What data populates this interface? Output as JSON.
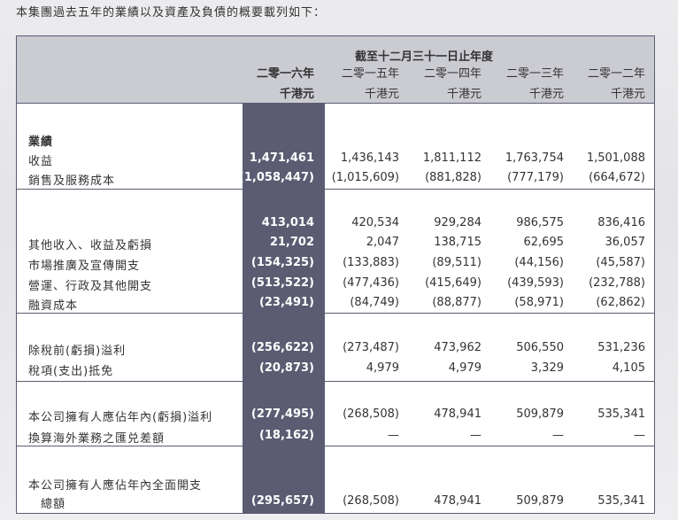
{
  "intro": "本集團過去五年的業績以及資產及負債的概要載列如下：",
  "header": {
    "title": "截至十二月三十一日止年度",
    "years": [
      "二零一六年",
      "二零一五年",
      "二零一四年",
      "二零一三年",
      "二零一二年"
    ],
    "unit": "千港元"
  },
  "rows": [
    {
      "label": "業績",
      "values": []
    },
    {
      "label": "收益",
      "values": [
        "1,471,461",
        "1,436,143",
        "1,811,112",
        "1,763,754",
        "1,501,088"
      ]
    },
    {
      "label": "銷售及服務成本",
      "values": [
        "(1,058,447)",
        "(1,015,609)",
        "(881,828)",
        "(777,179)",
        "(664,672)"
      ]
    },
    {
      "label": "",
      "values": [
        "413,014",
        "420,534",
        "929,284",
        "986,575",
        "836,416"
      ]
    },
    {
      "label": "其他收入、收益及虧損",
      "values": [
        "21,702",
        "2,047",
        "138,715",
        "62,695",
        "36,057"
      ]
    },
    {
      "label": "市場推廣及宣傳開支",
      "values": [
        "(154,325)",
        "(133,883)",
        "(89,511)",
        "(44,156)",
        "(45,587)"
      ]
    },
    {
      "label": "營運、行政及其他開支",
      "values": [
        "(513,522)",
        "(477,436)",
        "(415,649)",
        "(439,593)",
        "(232,788)"
      ]
    },
    {
      "label": "融資成本",
      "values": [
        "(23,491)",
        "(84,749)",
        "(88,877)",
        "(58,971)",
        "(62,862)"
      ]
    },
    {
      "label": "除稅前(虧損)溢利",
      "values": [
        "(256,622)",
        "(273,487)",
        "473,962",
        "506,550",
        "531,236"
      ]
    },
    {
      "label": "稅項(支出)抵免",
      "values": [
        "(20,873)",
        "4,979",
        "4,979",
        "3,329",
        "4,105"
      ]
    },
    {
      "label": "本公司擁有人應佔年內(虧損)溢利",
      "values": [
        "(277,495)",
        "(268,508)",
        "478,941",
        "509,879",
        "535,341"
      ]
    },
    {
      "label": "換算海外業務之匯兑差額",
      "values": [
        "(18,162)",
        "—",
        "—",
        "—",
        "—"
      ]
    },
    {
      "label": "本公司擁有人應佔年內全面開支",
      "values": []
    },
    {
      "label": "　總額",
      "values": [
        "(295,657)",
        "(268,508)",
        "478,941",
        "509,879",
        "535,341"
      ]
    }
  ]
}
